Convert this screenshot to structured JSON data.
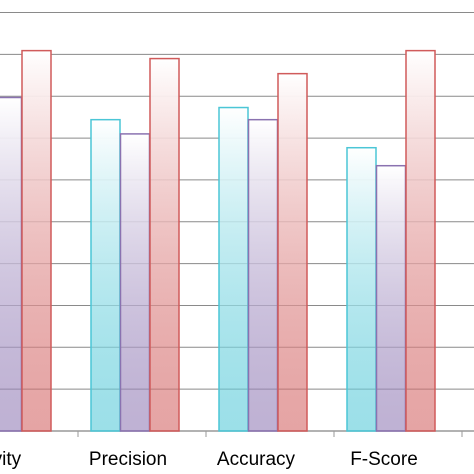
{
  "chart_data": {
    "type": "bar",
    "categories": [
      "itivity",
      "Precision",
      "Accuracy",
      "F-Score"
    ],
    "series": [
      {
        "color": "#4bc6d6",
        "values": [
          null,
          7.44,
          7.73,
          6.77
        ]
      },
      {
        "color": "#8a72b0",
        "values": [
          7.97,
          7.1,
          7.44,
          6.34
        ]
      },
      {
        "color": "#d05a5a",
        "values": [
          9.09,
          8.9,
          8.54,
          9.09
        ]
      }
    ],
    "ylim": [
      0,
      10.3
    ],
    "yticks": [
      0,
      1,
      2,
      3,
      4,
      5,
      6,
      7,
      8,
      9,
      10
    ],
    "grid": true
  }
}
